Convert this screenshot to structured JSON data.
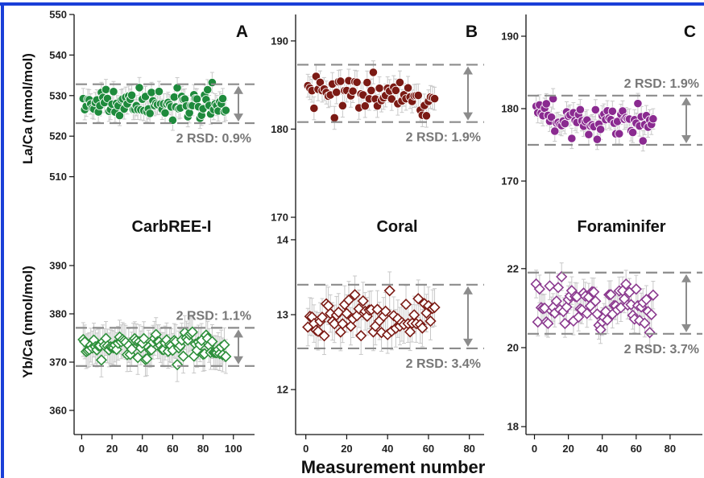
{
  "colors": {
    "frame": "#1a3fd8",
    "green": "#1e8a3c",
    "green_light": "#2d8f3a",
    "maroon": "#7b1a14",
    "purple": "#8a2a90",
    "purple_light": "#8b3a8f",
    "rsd_line": "#8c8c8c",
    "error_bar": "#c8c8c8"
  },
  "xlabel": "Measurement number",
  "chart_data": [
    {
      "id": "A",
      "type": "scatter",
      "panel_label": "A",
      "ylabel": "La/Ca  (nmol/mol)",
      "ylim": [
        500,
        550
      ],
      "yticks": [
        510,
        520,
        530,
        540,
        550
      ],
      "xlim": [
        -5,
        115
      ],
      "xticks": [
        0,
        20,
        40,
        60,
        80,
        100
      ],
      "marker": "circle",
      "color": "green",
      "rsd_label": "2 RSD: 0.9%",
      "rsd_band": [
        523.2,
        532.8
      ],
      "mean": 528,
      "n": 95,
      "spread": 2.4,
      "err": 2.5,
      "seed": 11
    },
    {
      "id": "B",
      "type": "scatter",
      "panel_label": "B",
      "ylabel": "",
      "ylim": [
        170,
        193
      ],
      "yticks": [
        170,
        180,
        190
      ],
      "xlim": [
        -5,
        88
      ],
      "xticks": [
        0,
        20,
        40,
        60,
        80
      ],
      "marker": "circle",
      "color": "maroon",
      "rsd_label": "2 RSD: 1.9%",
      "rsd_band": [
        180.8,
        187.3
      ],
      "mean": 184,
      "n": 63,
      "spread": 1.5,
      "err": 1.3,
      "seed": 23
    },
    {
      "id": "C",
      "type": "scatter",
      "panel_label": "C",
      "ylabel": "",
      "ylim": [
        165,
        193
      ],
      "yticks": [
        170,
        180,
        190
      ],
      "xlim": [
        -5,
        100
      ],
      "xticks": [
        0,
        20,
        40,
        60,
        80
      ],
      "marker": "circle",
      "color": "purple",
      "rsd_label": "2 RSD: 1.9%",
      "rsd_band": [
        175,
        181.8
      ],
      "mean": 178.4,
      "n": 70,
      "spread": 1.6,
      "err": 1.4,
      "seed": 37
    },
    {
      "id": "D",
      "type": "scatter",
      "panel_label": "",
      "title": "CarbREE-I",
      "ylabel": "Yb/Ca  (nmol/mol)",
      "ylim": [
        355,
        400
      ],
      "yticks": [
        360,
        370,
        380,
        390
      ],
      "xlim": [
        -5,
        115
      ],
      "xticks": [
        0,
        20,
        40,
        60,
        80,
        100
      ],
      "marker": "diamond",
      "color": "green_light",
      "rsd_label": "2 RSD: 1.1%",
      "rsd_band": [
        369.2,
        377.1
      ],
      "mean": 373.2,
      "n": 95,
      "spread": 2.0,
      "err": 3.5,
      "seed": 41
    },
    {
      "id": "E",
      "type": "scatter",
      "panel_label": "",
      "title": "Coral",
      "ylabel": "",
      "ylim": [
        11.4,
        14.3
      ],
      "yticks": [
        12,
        13,
        14
      ],
      "xlim": [
        -5,
        88
      ],
      "xticks": [
        0,
        20,
        40,
        60,
        80
      ],
      "marker": "diamond",
      "color": "maroon",
      "rsd_label": "2 RSD: 3.4%",
      "rsd_band": [
        12.55,
        13.4
      ],
      "mean": 12.97,
      "n": 63,
      "spread": 0.2,
      "err": 0.25,
      "seed": 53
    },
    {
      "id": "F",
      "type": "scatter",
      "panel_label": "",
      "title": "Foraminifer",
      "ylabel": "",
      "ylim": [
        17.8,
        23.3
      ],
      "yticks": [
        18,
        20,
        22
      ],
      "xlim": [
        -5,
        100
      ],
      "xticks": [
        0,
        20,
        40,
        60,
        80
      ],
      "marker": "diamond",
      "color": "purple_light",
      "rsd_label": "2 RSD: 3.7%",
      "rsd_band": [
        20.35,
        21.9
      ],
      "mean": 21.1,
      "n": 70,
      "spread": 0.36,
      "err": 0.35,
      "seed": 67
    }
  ]
}
